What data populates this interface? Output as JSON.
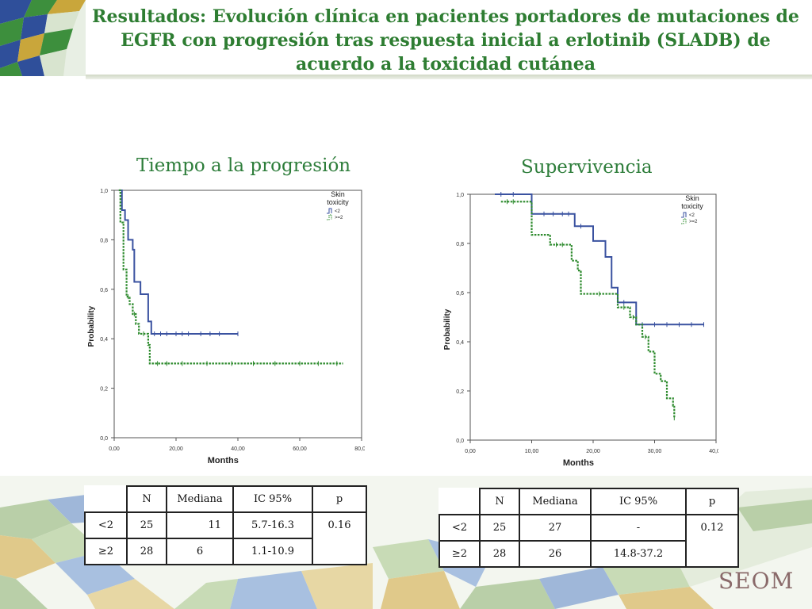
{
  "slide": {
    "title": "Resultados: Evolución clínica en pacientes portadores de mutaciones de EGFR con progresión tras respuesta inicial a erlotinib (SLADB) de acuerdo a la toxicidad cutánea",
    "logo_text": "SEOM",
    "colors": {
      "title_green": "#2e7d32",
      "series_lt2": "#3a52a0",
      "series_ge2": "#2e8b2e"
    }
  },
  "chart_data": [
    {
      "type": "line",
      "heading": "Tiempo a la progresión",
      "xlabel": "Months",
      "ylabel": "Probability",
      "xlim": [
        0,
        80
      ],
      "ylim": [
        0,
        1
      ],
      "xticks": [
        "0,00",
        "20,00",
        "40,00",
        "60,00",
        "80,00"
      ],
      "yticks": [
        "0,0",
        "0,2",
        "0,4",
        "0,6",
        "0,8",
        "1,0"
      ],
      "legend_title": [
        "Skin",
        "toxicity"
      ],
      "legend_position": "top-right",
      "series": [
        {
          "name": "<2",
          "color": "#3a52a0",
          "step": [
            [
              1.5,
              1.0
            ],
            [
              2.5,
              0.92
            ],
            [
              3.5,
              0.88
            ],
            [
              4.5,
              0.8
            ],
            [
              6,
              0.76
            ],
            [
              6.5,
              0.63
            ],
            [
              8,
              0.63
            ],
            [
              8.5,
              0.58
            ],
            [
              10.5,
              0.58
            ],
            [
              11,
              0.47
            ],
            [
              12,
              0.42
            ],
            [
              40,
              0.42
            ]
          ],
          "censored": [
            [
              13,
              0.42
            ],
            [
              15,
              0.42
            ],
            [
              17,
              0.42
            ],
            [
              20,
              0.42
            ],
            [
              22,
              0.42
            ],
            [
              24,
              0.42
            ],
            [
              28,
              0.42
            ],
            [
              31,
              0.42
            ],
            [
              34,
              0.42
            ],
            [
              40,
              0.42
            ]
          ]
        },
        {
          "name": ">=2",
          "color": "#2e8b2e",
          "step": [
            [
              1.5,
              1.0
            ],
            [
              2,
              0.87
            ],
            [
              3,
              0.68
            ],
            [
              4,
              0.57
            ],
            [
              5,
              0.54
            ],
            [
              6,
              0.5
            ],
            [
              7,
              0.46
            ],
            [
              8,
              0.42
            ],
            [
              10,
              0.42
            ],
            [
              11,
              0.375
            ],
            [
              11.5,
              0.3
            ],
            [
              74,
              0.3
            ]
          ],
          "censored": [
            [
              4.5,
              0.57
            ],
            [
              6.5,
              0.5
            ],
            [
              9.5,
              0.42
            ],
            [
              14,
              0.3
            ],
            [
              17,
              0.3
            ],
            [
              22,
              0.3
            ],
            [
              30,
              0.3
            ],
            [
              38,
              0.3
            ],
            [
              45,
              0.3
            ],
            [
              52,
              0.3
            ],
            [
              60,
              0.3
            ],
            [
              66,
              0.3
            ],
            [
              72,
              0.3
            ]
          ]
        }
      ]
    },
    {
      "type": "line",
      "heading": "Supervivencia",
      "xlabel": "Months",
      "ylabel": "Probability",
      "xlim": [
        0,
        40
      ],
      "ylim": [
        0,
        1
      ],
      "xticks": [
        "0,00",
        "10,00",
        "20,00",
        "30,00",
        "40,00"
      ],
      "yticks": [
        "0,0",
        "0,2",
        "0,4",
        "0,6",
        "0,8",
        "1,0"
      ],
      "legend_title": [
        "Skin",
        "toxicity"
      ],
      "legend_position": "top-right",
      "series": [
        {
          "name": "<2",
          "color": "#3a52a0",
          "step": [
            [
              4,
              1.0
            ],
            [
              10,
              0.92
            ],
            [
              17,
              0.87
            ],
            [
              20,
              0.81
            ],
            [
              22,
              0.745
            ],
            [
              23,
              0.62
            ],
            [
              24,
              0.56
            ],
            [
              27,
              0.47
            ],
            [
              38,
              0.47
            ]
          ],
          "censored": [
            [
              5,
              1.0
            ],
            [
              7,
              1.0
            ],
            [
              12,
              0.92
            ],
            [
              13.5,
              0.92
            ],
            [
              15,
              0.92
            ],
            [
              16,
              0.92
            ],
            [
              18,
              0.87
            ],
            [
              25,
              0.56
            ],
            [
              28,
              0.47
            ],
            [
              30,
              0.47
            ],
            [
              32,
              0.47
            ],
            [
              34,
              0.47
            ],
            [
              36,
              0.47
            ],
            [
              38,
              0.47
            ]
          ]
        },
        {
          "name": ">=2",
          "color": "#2e8b2e",
          "step": [
            [
              5,
              0.97
            ],
            [
              10,
              0.835
            ],
            [
              13,
              0.795
            ],
            [
              16.5,
              0.73
            ],
            [
              17.5,
              0.69
            ],
            [
              18,
              0.595
            ],
            [
              24,
              0.54
            ],
            [
              26,
              0.5
            ],
            [
              27,
              0.47
            ],
            [
              28,
              0.42
            ],
            [
              29,
              0.36
            ],
            [
              30,
              0.27
            ],
            [
              31,
              0.24
            ],
            [
              32,
              0.17
            ],
            [
              33,
              0.14
            ],
            [
              33.2,
              0.09
            ]
          ],
          "censored": [
            [
              6,
              0.97
            ],
            [
              7,
              0.97
            ],
            [
              14,
              0.795
            ],
            [
              15,
              0.795
            ],
            [
              21,
              0.595
            ],
            [
              25,
              0.54
            ],
            [
              26.5,
              0.5
            ],
            [
              28.5,
              0.42
            ],
            [
              33.2,
              0.09
            ]
          ]
        }
      ]
    }
  ],
  "tables": [
    {
      "headers": [
        "",
        "N",
        "Mediana",
        "IC 95%",
        "p"
      ],
      "rows": [
        {
          "group": "<2",
          "n": "25",
          "median": "11",
          "ci": "5.7-16.3"
        },
        {
          "group": "≥2",
          "n": "28",
          "median": "6",
          "ci": "1.1-10.9"
        }
      ],
      "p": "0.16"
    },
    {
      "headers": [
        "",
        "N",
        "Mediana",
        "IC 95%",
        "p"
      ],
      "rows": [
        {
          "group": "<2",
          "n": "25",
          "median": "27",
          "ci": "-"
        },
        {
          "group": "≥2",
          "n": "28",
          "median": "26",
          "ci": "14.8-37.2"
        }
      ],
      "p": "0.12"
    }
  ]
}
